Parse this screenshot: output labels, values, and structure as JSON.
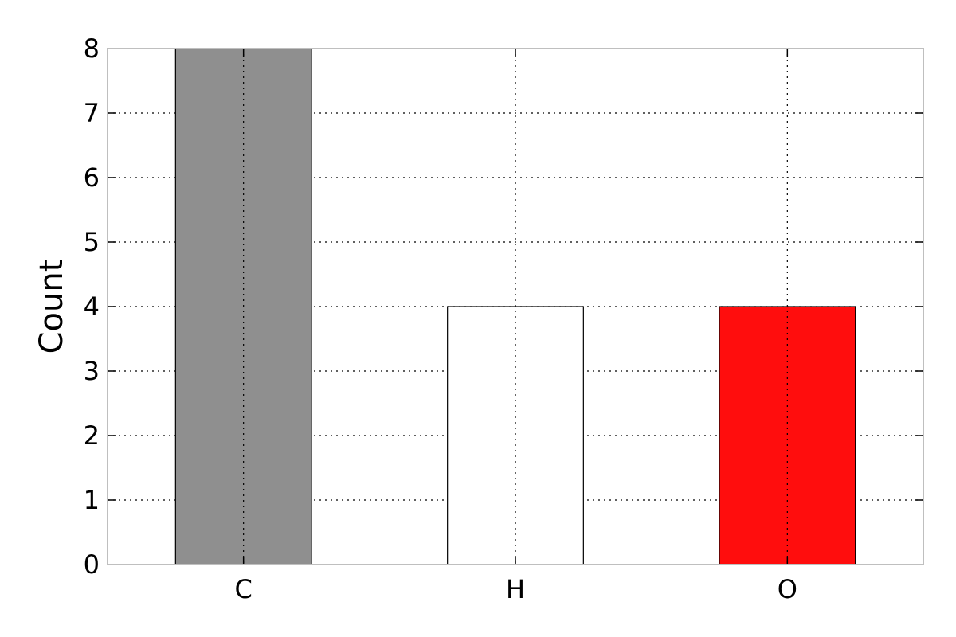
{
  "chart_data": {
    "type": "bar",
    "categories": [
      "C",
      "H",
      "O"
    ],
    "values": [
      8,
      4,
      4
    ],
    "colors": [
      "#8f8f8f",
      "#ffffff",
      "#ff0d0d"
    ],
    "title": "",
    "xlabel": "",
    "ylabel": "Count",
    "ylim": [
      0,
      8
    ],
    "yticks": [
      "0",
      "1",
      "2",
      "3",
      "4",
      "5",
      "6",
      "7",
      "8"
    ],
    "grid": true,
    "grid_style": "dotted",
    "legend": "none"
  }
}
